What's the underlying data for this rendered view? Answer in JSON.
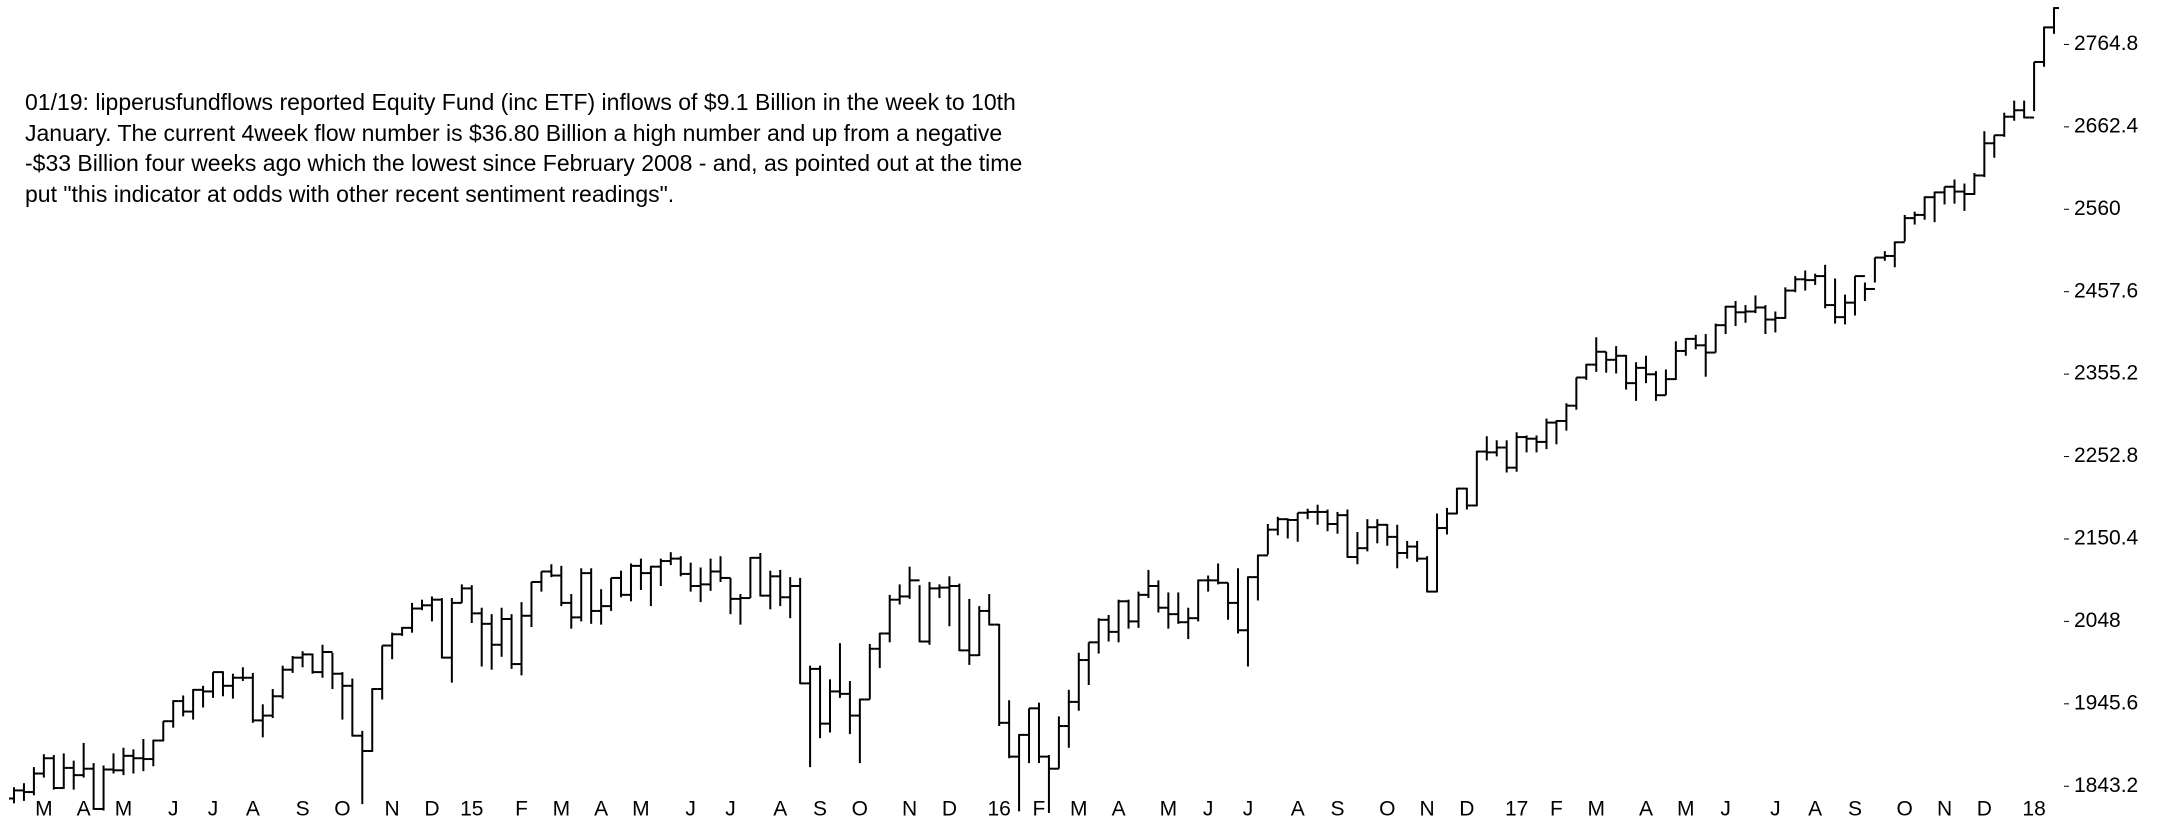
{
  "chart_data": {
    "type": "ohlc",
    "annotation": [
      "01/19: lipperusfundflows reported Equity Fund (inc ETF) inflows of $9.1 Billion in the week to 10th",
      "January. The current 4week flow number is $36.80 Billion a high number and up from a negative",
      "-$33 Billion four weeks ago which the lowest since February 2008 - and, as pointed out at the time",
      "put \"this indicator at odds with other recent sentiment readings\"."
    ],
    "color": "#000000",
    "grid": false,
    "ylim": [
      1805,
      2820
    ],
    "yticks": [
      1843.2,
      1945.6,
      2048,
      2150.4,
      2252.8,
      2355.2,
      2457.6,
      2560,
      2662.4,
      2764.8
    ],
    "categories": [
      null,
      null,
      null,
      "M",
      null,
      null,
      null,
      "A",
      null,
      null,
      null,
      "M",
      null,
      null,
      null,
      null,
      "J",
      null,
      null,
      null,
      "J",
      null,
      null,
      null,
      "A",
      null,
      null,
      null,
      null,
      "S",
      null,
      null,
      null,
      "O",
      null,
      null,
      null,
      null,
      "N",
      null,
      null,
      null,
      "D",
      null,
      null,
      null,
      "15",
      null,
      null,
      null,
      null,
      "F",
      null,
      null,
      null,
      "M",
      null,
      null,
      null,
      "A",
      null,
      null,
      null,
      "M",
      null,
      null,
      null,
      null,
      "J",
      null,
      null,
      null,
      "J",
      null,
      null,
      null,
      null,
      "A",
      null,
      null,
      null,
      "S",
      null,
      null,
      null,
      "O",
      null,
      null,
      null,
      null,
      "N",
      null,
      null,
      null,
      "D",
      null,
      null,
      null,
      null,
      "16",
      null,
      null,
      null,
      "F",
      null,
      null,
      null,
      "M",
      null,
      null,
      null,
      "A",
      null,
      null,
      null,
      null,
      "M",
      null,
      null,
      null,
      "J",
      null,
      null,
      null,
      "J",
      null,
      null,
      null,
      null,
      "A",
      null,
      null,
      null,
      "S",
      null,
      null,
      null,
      null,
      "O",
      null,
      null,
      null,
      "N",
      null,
      null,
      null,
      "D",
      null,
      null,
      null,
      null,
      "17",
      null,
      null,
      null,
      "F",
      null,
      null,
      null,
      "M",
      null,
      null,
      null,
      null,
      "A",
      null,
      null,
      null,
      "M",
      null,
      null,
      null,
      "J",
      null,
      null,
      null,
      null,
      "J",
      null,
      null,
      null,
      "A",
      null,
      null,
      null,
      "S",
      null,
      null,
      null,
      null,
      "O",
      null,
      null,
      null,
      "N",
      null,
      null,
      null,
      "D",
      null,
      null,
      null,
      null,
      "18",
      null,
      null
    ],
    "open": [
      1828,
      1838,
      1836,
      1859,
      1878,
      1841,
      1866,
      1857,
      1865,
      1815,
      1864,
      1863,
      1881,
      1878,
      1877,
      1900,
      1924,
      1949,
      1936,
      1963,
      1961,
      1985,
      1968,
      1978,
      1978,
      1925,
      1931,
      1955,
      1988,
      2003,
      2007,
      1985,
      2010,
      1983,
      1968,
      1906,
      1887,
      1964,
      2018,
      2032,
      2040,
      2064,
      2068,
      2075,
      2003,
      2071,
      2089,
      2058,
      2045,
      2019,
      2051,
      1995,
      2055,
      2097,
      2110,
      2105,
      2071,
      2053,
      2108,
      2061,
      2067,
      2102,
      2081,
      2117,
      2108,
      2116,
      2123,
      2126,
      2107,
      2092,
      2094,
      2110,
      2102,
      2076,
      2077,
      2127,
      2080,
      2104,
      2078,
      2092,
      1971,
      1989,
      1921,
      1961,
      1958,
      1931,
      1951,
      2014,
      2033,
      2075,
      2079,
      2099,
      2023,
      2089,
      2090,
      2092,
      2012,
      2006,
      2061,
      2044,
      1922,
      1880,
      1907,
      1940,
      1880,
      1865,
      1918,
      1948,
      2000,
      2022,
      2050,
      2035,
      2073,
      2048,
      2081,
      2092,
      2065,
      2057,
      2047,
      2052,
      2099,
      2099,
      2096,
      2071,
      2037,
      2103,
      2130,
      2162,
      2175,
      2174,
      2183,
      2184,
      2184,
      2169,
      2180,
      2128,
      2139,
      2165,
      2168,
      2153,
      2133,
      2141,
      2126,
      2085,
      2164,
      2182,
      2213,
      2192,
      2259,
      2258,
      2264,
      2239,
      2277,
      2275,
      2271,
      2295,
      2297,
      2316,
      2351,
      2367,
      2383,
      2373,
      2378,
      2344,
      2363,
      2355,
      2329,
      2349,
      2384,
      2399,
      2391,
      2382,
      2416,
      2439,
      2432,
      2433,
      2438,
      2423,
      2425,
      2459,
      2473,
      2472,
      2477,
      2441,
      2426,
      2444,
      2477,
      2461,
      2500,
      2502,
      2519,
      2549,
      2553,
      2575,
      2581,
      2588,
      2582,
      2579,
      2602,
      2642,
      2652,
      2675,
      2683,
      2674,
      2743,
      2786
    ],
    "high": [
      1842,
      1847,
      1867,
      1883,
      1882,
      1884,
      1875,
      1897,
      1872,
      1869,
      1884,
      1891,
      1889,
      1902,
      1901,
      1924,
      1950,
      1956,
      1964,
      1968,
      1985,
      1986,
      1983,
      1991,
      1984,
      1945,
      1964,
      1993,
      2005,
      2011,
      2008,
      2019,
      2009,
      1985,
      1977,
      1912,
      1965,
      2018,
      2034,
      2041,
      2071,
      2075,
      2079,
      2077,
      2077,
      2094,
      2093,
      2065,
      2057,
      2065,
      2057,
      2072,
      2097,
      2110,
      2119,
      2117,
      2082,
      2114,
      2114,
      2088,
      2102,
      2111,
      2120,
      2126,
      2117,
      2126,
      2134,
      2129,
      2121,
      2115,
      2126,
      2129,
      2102,
      2082,
      2128,
      2133,
      2111,
      2112,
      2103,
      2102,
      1993,
      1993,
      1976,
      2021,
      1974,
      1952,
      2020,
      2034,
      2081,
      2094,
      2116,
      2093,
      2097,
      2094,
      2104,
      2095,
      2076,
      2067,
      2082,
      2045,
      1950,
      1908,
      1940,
      1947,
      1882,
      1930,
      1963,
      2009,
      2022,
      2052,
      2056,
      2075,
      2075,
      2085,
      2112,
      2099,
      2084,
      2084,
      2065,
      2100,
      2105,
      2120,
      2096,
      2114,
      2104,
      2131,
      2169,
      2178,
      2176,
      2183,
      2188,
      2193,
      2187,
      2184,
      2187,
      2159,
      2175,
      2175,
      2169,
      2168,
      2148,
      2148,
      2129,
      2182,
      2189,
      2214,
      2214,
      2260,
      2278,
      2273,
      2273,
      2283,
      2279,
      2279,
      2300,
      2298,
      2319,
      2351,
      2368,
      2401,
      2383,
      2390,
      2379,
      2370,
      2378,
      2359,
      2361,
      2396,
      2400,
      2404,
      2405,
      2418,
      2440,
      2446,
      2441,
      2453,
      2441,
      2433,
      2463,
      2477,
      2484,
      2480,
      2491,
      2474,
      2454,
      2477,
      2469,
      2500,
      2508,
      2520,
      2553,
      2557,
      2576,
      2582,
      2588,
      2597,
      2592,
      2605,
      2657,
      2652,
      2680,
      2695,
      2695,
      2743,
      2787,
      2811
    ],
    "low": [
      1822,
      1825,
      1832,
      1854,
      1839,
      1840,
      1839,
      1854,
      1814,
      1813,
      1859,
      1857,
      1859,
      1862,
      1868,
      1899,
      1916,
      1930,
      1926,
      1941,
      1953,
      1955,
      1952,
      1974,
      1922,
      1904,
      1928,
      1952,
      1984,
      1991,
      1983,
      1978,
      1964,
      1926,
      1905,
      1821,
      1886,
      1951,
      2001,
      2030,
      2034,
      2062,
      2048,
      2002,
      1972,
      2071,
      2046,
      1992,
      1988,
      2004,
      1989,
      1981,
      2041,
      2085,
      2103,
      2067,
      2039,
      2048,
      2045,
      2044,
      2061,
      2078,
      2073,
      2087,
      2067,
      2092,
      2118,
      2104,
      2085,
      2072,
      2086,
      2097,
      2057,
      2044,
      2077,
      2079,
      2063,
      2067,
      2052,
      1970,
      1867,
      1903,
      1910,
      1953,
      1908,
      1872,
      1951,
      1990,
      2022,
      2069,
      2076,
      2022,
      2019,
      2077,
      2042,
      2011,
      1994,
      2005,
      2043,
      1918,
      1878,
      1812,
      1872,
      1872,
      1810,
      1865,
      1891,
      1937,
      1969,
      2008,
      2023,
      2022,
      2039,
      2040,
      2077,
      2059,
      2039,
      2045,
      2026,
      2048,
      2085,
      2094,
      2050,
      2033,
      1992,
      2074,
      2131,
      2155,
      2151,
      2147,
      2175,
      2168,
      2160,
      2157,
      2127,
      2119,
      2135,
      2145,
      2142,
      2114,
      2126,
      2122,
      2084,
      2084,
      2156,
      2181,
      2187,
      2191,
      2248,
      2253,
      2233,
      2234,
      2258,
      2258,
      2262,
      2268,
      2285,
      2311,
      2348,
      2358,
      2357,
      2356,
      2336,
      2322,
      2344,
      2322,
      2329,
      2348,
      2378,
      2386,
      2352,
      2382,
      2405,
      2415,
      2419,
      2431,
      2405,
      2407,
      2424,
      2457,
      2459,
      2466,
      2437,
      2418,
      2417,
      2428,
      2446,
      2469,
      2496,
      2488,
      2520,
      2541,
      2547,
      2544,
      2566,
      2567,
      2558,
      2578,
      2600,
      2624,
      2650,
      2670,
      2673,
      2682,
      2737,
      2778
    ],
    "close": [
      1838,
      1836,
      1859,
      1878,
      1841,
      1866,
      1857,
      1865,
      1815,
      1864,
      1863,
      1881,
      1878,
      1877,
      1900,
      1924,
      1949,
      1936,
      1963,
      1961,
      1985,
      1968,
      1978,
      1978,
      1925,
      1931,
      1955,
      1988,
      2003,
      2007,
      1985,
      2010,
      1983,
      1968,
      1906,
      1887,
      1964,
      2018,
      2032,
      2040,
      2064,
      2068,
      2075,
      2003,
      2071,
      2089,
      2058,
      2045,
      2019,
      2051,
      1995,
      2055,
      2097,
      2110,
      2105,
      2071,
      2053,
      2108,
      2061,
      2067,
      2102,
      2081,
      2117,
      2108,
      2116,
      2123,
      2126,
      2107,
      2092,
      2094,
      2110,
      2102,
      2076,
      2077,
      2127,
      2080,
      2104,
      2078,
      2092,
      1971,
      1989,
      1921,
      1961,
      1958,
      1931,
      1951,
      2014,
      2033,
      2075,
      2079,
      2099,
      2023,
      2089,
      2090,
      2092,
      2012,
      2006,
      2061,
      2044,
      1922,
      1880,
      1907,
      1940,
      1880,
      1865,
      1918,
      1948,
      2000,
      2022,
      2050,
      2035,
      2073,
      2048,
      2081,
      2092,
      2065,
      2057,
      2047,
      2052,
      2099,
      2099,
      2096,
      2071,
      2037,
      2103,
      2130,
      2162,
      2175,
      2174,
      2183,
      2184,
      2184,
      2169,
      2180,
      2128,
      2139,
      2165,
      2168,
      2153,
      2133,
      2141,
      2126,
      2085,
      2164,
      2182,
      2213,
      2192,
      2259,
      2258,
      2264,
      2239,
      2277,
      2275,
      2271,
      2295,
      2297,
      2316,
      2351,
      2367,
      2383,
      2373,
      2378,
      2344,
      2363,
      2355,
      2329,
      2349,
      2384,
      2399,
      2391,
      2382,
      2416,
      2439,
      2432,
      2433,
      2438,
      2423,
      2425,
      2459,
      2473,
      2472,
      2477,
      2441,
      2426,
      2444,
      2477,
      2461,
      2500,
      2502,
      2519,
      2549,
      2553,
      2575,
      2581,
      2588,
      2582,
      2579,
      2602,
      2642,
      2652,
      2675,
      2683,
      2674,
      2743,
      2786,
      2810
    ]
  }
}
